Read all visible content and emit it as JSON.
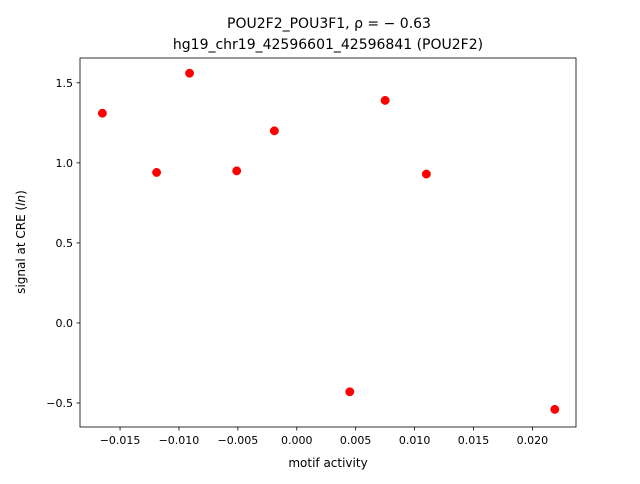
{
  "chart_data": {
    "type": "scatter",
    "title_line1": "POU2F2_POU3F1, ρ = − 0.63",
    "title_line2": "hg19_chr19_42596601_42596841 (POU2F2)",
    "xlabel": "motif activity",
    "ylabel_main": "signal at CRE (",
    "ylabel_italic": "ln",
    "ylabel_end": ")",
    "xlim": [
      -0.0184,
      0.0237
    ],
    "ylim": [
      -0.65,
      1.655
    ],
    "xticks": [
      -0.015,
      -0.01,
      -0.005,
      0.0,
      0.005,
      0.01,
      0.015,
      0.02
    ],
    "xtick_labels": [
      "−0.015",
      "−0.010",
      "−0.005",
      "0.000",
      "0.005",
      "0.010",
      "0.015",
      "0.020"
    ],
    "yticks": [
      -0.5,
      0.0,
      0.5,
      1.0,
      1.5
    ],
    "ytick_labels": [
      "−0.5",
      "0.0",
      "0.5",
      "1.0",
      "1.5"
    ],
    "grid": false,
    "marker_color": "#ff0000",
    "points": [
      {
        "x": -0.0165,
        "y": 1.31
      },
      {
        "x": -0.0119,
        "y": 0.94
      },
      {
        "x": -0.0091,
        "y": 1.56
      },
      {
        "x": -0.0051,
        "y": 0.95
      },
      {
        "x": -0.0019,
        "y": 1.2
      },
      {
        "x": 0.0045,
        "y": -0.43
      },
      {
        "x": 0.0075,
        "y": 1.39
      },
      {
        "x": 0.011,
        "y": 0.93
      },
      {
        "x": 0.0219,
        "y": -0.54
      }
    ]
  }
}
